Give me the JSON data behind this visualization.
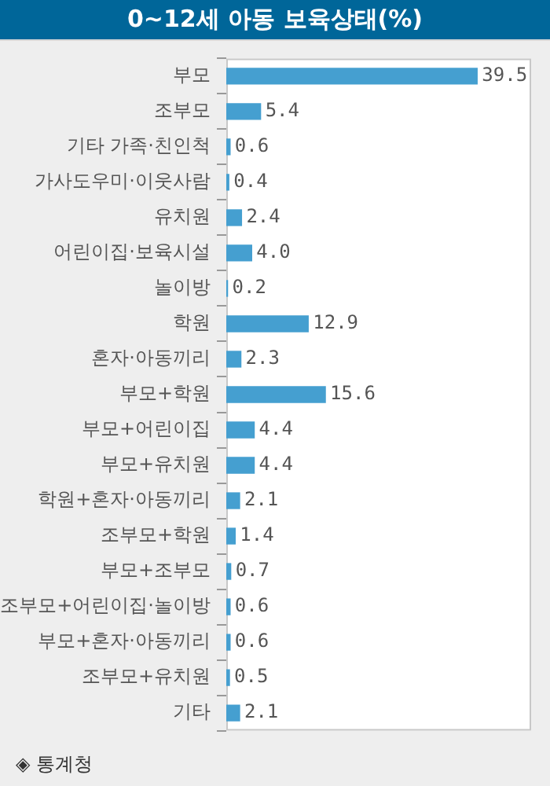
{
  "chart_data": {
    "type": "bar",
    "orientation": "horizontal",
    "title": "0~12세 아동 보육상태(%)",
    "categories": [
      "부모",
      "조부모",
      "기타 가족·친인척",
      "가사도우미·이웃사람",
      "유치원",
      "어린이집·보육시설",
      "놀이방",
      "학원",
      "혼자·아동끼리",
      "부모+학원",
      "부모+어린이집",
      "부모+유치원",
      "학원+혼자·아동끼리",
      "조부모+학원",
      "부모+조부모",
      "조부모+어린이집·놀이방",
      "부모+혼자·아동끼리",
      "조부모+유치원",
      "기타"
    ],
    "values": [
      39.5,
      5.4,
      0.6,
      0.4,
      2.4,
      4.0,
      0.2,
      12.9,
      2.3,
      15.6,
      4.4,
      4.4,
      2.1,
      1.4,
      0.7,
      0.6,
      0.6,
      0.5,
      2.1
    ],
    "value_labels": [
      "39.5",
      "5.4",
      "0.6",
      "0.4",
      "2.4",
      "4.0",
      "0.2",
      "12.9",
      "2.3",
      "15.6",
      "4.4",
      "4.4",
      "2.1",
      "1.4",
      "0.7",
      "0.6",
      "0.6",
      "0.5",
      "2.1"
    ],
    "color": "#459fd0",
    "xlim": [
      0,
      48
    ],
    "tick_labels": "y",
    "grid": false,
    "legend": false,
    "annotations": [
      "◈ 통계청"
    ]
  }
}
